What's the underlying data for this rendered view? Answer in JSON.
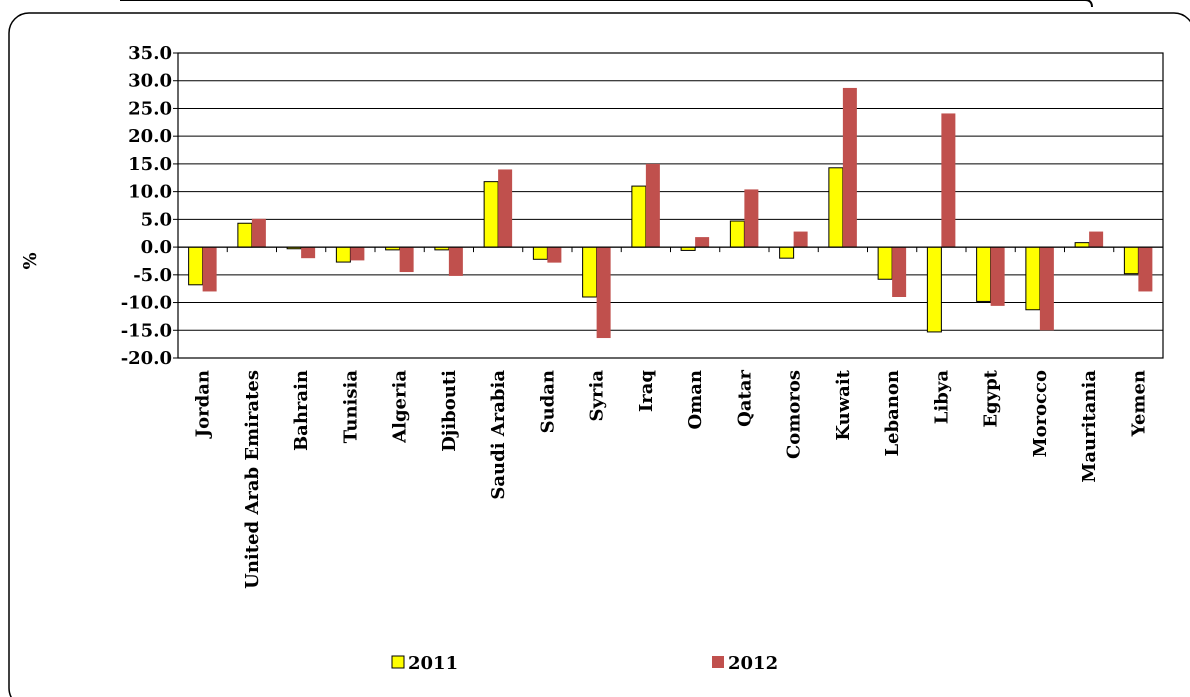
{
  "chart_data": {
    "type": "bar",
    "ylabel": "%",
    "ylim": [
      -20,
      35
    ],
    "ytick_step": 5,
    "grid": true,
    "legend_position": "bottom",
    "categories": [
      "Jordan",
      "United Arab Emirates",
      "Bahrain",
      "Tunisia",
      "Algeria",
      "Djibouti",
      "Saudi Arabia",
      "Sudan",
      "Syria",
      "Iraq",
      "Oman",
      "Qatar",
      "Comoros",
      "Kuwait",
      "Lebanon",
      "Libya",
      "Egypt",
      "Morocco",
      "Mauritania",
      "Yemen"
    ],
    "series": [
      {
        "name": "2011",
        "color": "#ffff00",
        "values": [
          -6.8,
          4.3,
          -0.3,
          -2.7,
          -0.5,
          -0.5,
          11.8,
          -2.2,
          -9.0,
          11.0,
          -0.6,
          4.7,
          -2.0,
          14.3,
          -5.8,
          -15.3,
          -9.8,
          -11.3,
          0.8,
          -4.8
        ]
      },
      {
        "name": "2012",
        "color": "#c0504d",
        "values": [
          -8.0,
          5.1,
          -2.0,
          -2.4,
          -4.5,
          -5.2,
          14.0,
          -2.8,
          -16.4,
          15.0,
          1.8,
          10.4,
          2.8,
          28.7,
          -9.0,
          24.1,
          -10.6,
          -15.0,
          2.8,
          -8.0
        ]
      }
    ]
  }
}
